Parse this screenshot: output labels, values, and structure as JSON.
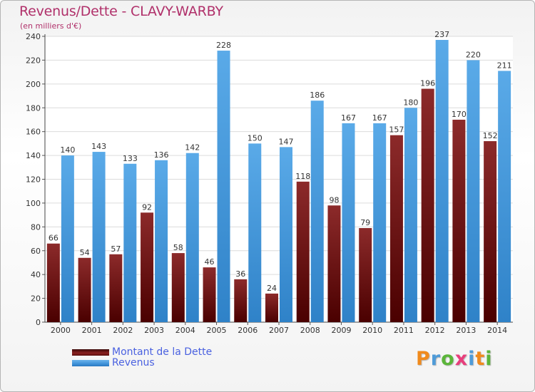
{
  "header": {
    "title": "Revenus/Dette - CLAVY-WARBY",
    "subtitle": "(en milliers d'€)"
  },
  "logo": {
    "text": "Proxiti",
    "colors": [
      "#f08a1c",
      "#4f9bd8",
      "#5bb53a",
      "#e83e7c",
      "#4f9bd8",
      "#f08a1c",
      "#5bb53a"
    ]
  },
  "colors": {
    "debt": "#7a1a1a",
    "revenue": "#4b9ee0",
    "title": "#b0306a",
    "legend_text": "#4a61e0"
  },
  "chart_data": {
    "type": "bar",
    "title": "Revenus/Dette - CLAVY-WARBY",
    "subtitle": "(en milliers d'€)",
    "categories": [
      "2000",
      "2001",
      "2002",
      "2003",
      "2004",
      "2005",
      "2006",
      "2007",
      "2008",
      "2009",
      "2010",
      "2011",
      "2012",
      "2013",
      "2014"
    ],
    "series": [
      {
        "name": "Montant de la Dette",
        "color": "#7a1a1a",
        "values": [
          66,
          54,
          57,
          92,
          58,
          46,
          36,
          24,
          118,
          98,
          79,
          157,
          196,
          170,
          152
        ]
      },
      {
        "name": "Revenus",
        "color": "#4b9ee0",
        "values": [
          140,
          143,
          133,
          136,
          142,
          228,
          150,
          147,
          186,
          167,
          167,
          180,
          237,
          220,
          211
        ]
      }
    ],
    "ylim": [
      0,
      240
    ],
    "yticks": [
      0,
      20,
      40,
      60,
      80,
      100,
      120,
      140,
      160,
      180,
      200,
      220,
      240
    ],
    "grid": true,
    "legend_position": "bottom-left"
  }
}
